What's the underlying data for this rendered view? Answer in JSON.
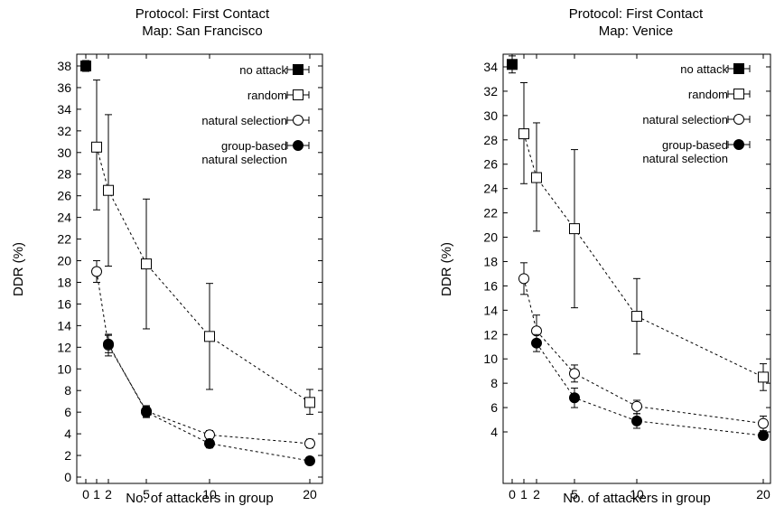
{
  "chart_data": [
    {
      "type": "line",
      "title_lines": [
        "Protocol: First Contact",
        "Map: San Francisco"
      ],
      "xlabel": "No. of attackers in group",
      "ylabel": "DDR (%)",
      "xticks": [
        0,
        1,
        2,
        5,
        10,
        20
      ],
      "yticks": [
        0,
        2,
        4,
        6,
        8,
        10,
        12,
        14,
        16,
        18,
        20,
        22,
        24,
        26,
        28,
        30,
        32,
        34,
        36,
        38
      ],
      "xlim": [
        -0.3,
        20.5
      ],
      "ylim": [
        0,
        39
      ],
      "legend_position": "top-right",
      "series": [
        {
          "name": "no attack",
          "marker": "filled-square",
          "points": [
            {
              "x": 0,
              "y": 38,
              "lo": 37.5,
              "hi": 38.5
            }
          ]
        },
        {
          "name": "random",
          "marker": "open-square",
          "points": [
            {
              "x": 1,
              "y": 30.5,
              "lo": 24.7,
              "hi": 36.7
            },
            {
              "x": 2,
              "y": 26.5,
              "lo": 19.5,
              "hi": 33.5
            },
            {
              "x": 5,
              "y": 19.7,
              "lo": 13.7,
              "hi": 25.7
            },
            {
              "x": 10,
              "y": 13.0,
              "lo": 8.1,
              "hi": 17.9
            },
            {
              "x": 20,
              "y": 6.9,
              "lo": 5.8,
              "hi": 8.1
            }
          ]
        },
        {
          "name": "natural selection",
          "marker": "open-circle",
          "points": [
            {
              "x": 1,
              "y": 19.0,
              "lo": 18.0,
              "hi": 20.0
            },
            {
              "x": 2,
              "y": 12.2,
              "lo": 11.2,
              "hi": 13.2
            },
            {
              "x": 5,
              "y": 6.1,
              "lo": 5.6,
              "hi": 6.6
            },
            {
              "x": 10,
              "y": 3.9,
              "lo": 3.5,
              "hi": 4.3
            },
            {
              "x": 20,
              "y": 3.1,
              "lo": 2.7,
              "hi": 3.5
            }
          ]
        },
        {
          "name_lines": [
            "group-based",
            "natural selection"
          ],
          "marker": "filled-circle",
          "points": [
            {
              "x": 2,
              "y": 12.3,
              "lo": 11.5,
              "hi": 13.1
            },
            {
              "x": 5,
              "y": 6.0,
              "lo": 5.5,
              "hi": 6.5
            },
            {
              "x": 10,
              "y": 3.1,
              "lo": 2.7,
              "hi": 3.5
            },
            {
              "x": 20,
              "y": 1.5,
              "lo": 1.3,
              "hi": 1.7
            }
          ]
        }
      ]
    },
    {
      "type": "line",
      "title_lines": [
        "Protocol: First Contact",
        "Map: Venice"
      ],
      "xlabel": "No. of attackers in group",
      "ylabel": "DDR (%)",
      "xticks": [
        0,
        1,
        2,
        5,
        10,
        20
      ],
      "yticks": [
        4,
        6,
        8,
        10,
        12,
        14,
        16,
        18,
        20,
        22,
        24,
        26,
        28,
        30,
        32,
        34
      ],
      "xlim": [
        -0.3,
        20.5
      ],
      "ylim": [
        2.7,
        35
      ],
      "legend_position": "top-right",
      "series": [
        {
          "name": "no attack",
          "marker": "filled-square",
          "points": [
            {
              "x": 0,
              "y": 34.2,
              "lo": 33.5,
              "hi": 34.9
            }
          ]
        },
        {
          "name": "random",
          "marker": "open-square",
          "points": [
            {
              "x": 1,
              "y": 28.5,
              "lo": 24.4,
              "hi": 32.7
            },
            {
              "x": 2,
              "y": 24.9,
              "lo": 20.5,
              "hi": 29.4
            },
            {
              "x": 5,
              "y": 20.7,
              "lo": 14.2,
              "hi": 27.2
            },
            {
              "x": 10,
              "y": 13.5,
              "lo": 10.4,
              "hi": 16.6
            },
            {
              "x": 20,
              "y": 8.5,
              "lo": 7.4,
              "hi": 9.6
            }
          ]
        },
        {
          "name": "natural selection",
          "marker": "open-circle",
          "points": [
            {
              "x": 1,
              "y": 16.6,
              "lo": 15.3,
              "hi": 17.9
            },
            {
              "x": 2,
              "y": 12.3,
              "lo": 11.1,
              "hi": 13.6
            },
            {
              "x": 5,
              "y": 8.8,
              "lo": 8.1,
              "hi": 9.5
            },
            {
              "x": 10,
              "y": 6.1,
              "lo": 5.5,
              "hi": 6.6
            },
            {
              "x": 20,
              "y": 4.7,
              "lo": 4.1,
              "hi": 5.3
            }
          ]
        },
        {
          "name_lines": [
            "group-based",
            "natural selection"
          ],
          "marker": "filled-circle",
          "points": [
            {
              "x": 2,
              "y": 11.3,
              "lo": 10.6,
              "hi": 12.0
            },
            {
              "x": 5,
              "y": 6.8,
              "lo": 6.0,
              "hi": 7.6
            },
            {
              "x": 10,
              "y": 4.9,
              "lo": 4.3,
              "hi": 5.5
            },
            {
              "x": 20,
              "y": 3.7,
              "lo": 3.4,
              "hi": 4.0
            }
          ]
        }
      ]
    }
  ]
}
